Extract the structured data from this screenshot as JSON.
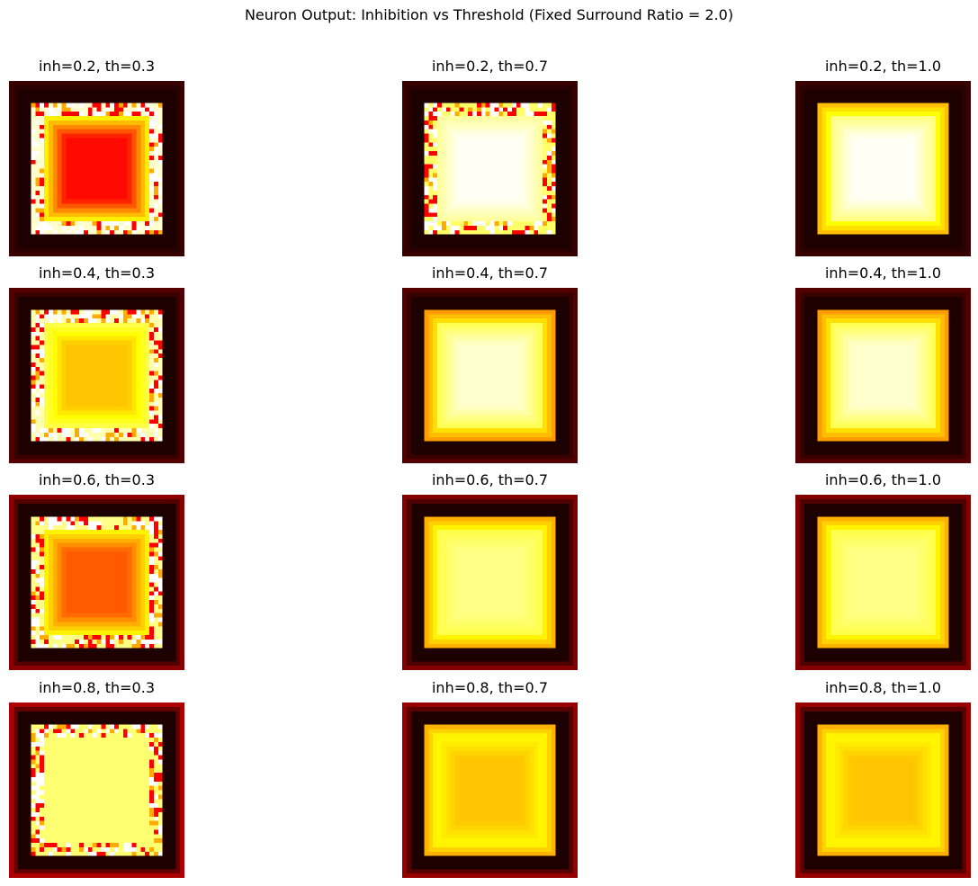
{
  "chart_data": {
    "type": "heatmap",
    "title": "Neuron Output: Inhibition vs Threshold (Fixed Surround Ratio = 2.0)",
    "colormap": "hot",
    "grid": false,
    "axes_visible": false,
    "rows": [
      "inh=0.2",
      "inh=0.4",
      "inh=0.6",
      "inh=0.8"
    ],
    "columns": [
      "th=0.3",
      "th=0.7",
      "th=1.0"
    ],
    "panels": [
      {
        "title": "inh=0.2, th=0.3",
        "inh": 0.2,
        "th": 0.3,
        "background": 0.05,
        "ring": 0.0,
        "edge": 0.95,
        "center": 0.38,
        "pattern": "noisy-edge"
      },
      {
        "title": "inh=0.2, th=0.7",
        "inh": 0.2,
        "th": 0.7,
        "background": 0.05,
        "ring": 0.0,
        "edge": 0.85,
        "center": 0.99,
        "pattern": "noisy-edge"
      },
      {
        "title": "inh=0.2, th=1.0",
        "inh": 0.2,
        "th": 1.0,
        "background": 0.05,
        "ring": 0.0,
        "edge": 0.8,
        "center": 0.99,
        "pattern": "smooth"
      },
      {
        "title": "inh=0.4, th=0.3",
        "inh": 0.4,
        "th": 0.3,
        "background": 0.1,
        "ring": 0.0,
        "edge": 0.92,
        "center": 0.66,
        "pattern": "noisy-edge"
      },
      {
        "title": "inh=0.4, th=0.7",
        "inh": 0.4,
        "th": 0.7,
        "background": 0.1,
        "ring": 0.0,
        "edge": 0.75,
        "center": 0.95,
        "pattern": "smooth"
      },
      {
        "title": "inh=0.4, th=1.0",
        "inh": 0.4,
        "th": 1.0,
        "background": 0.1,
        "ring": 0.0,
        "edge": 0.75,
        "center": 0.95,
        "pattern": "smooth"
      },
      {
        "title": "inh=0.6, th=0.3",
        "inh": 0.6,
        "th": 0.3,
        "background": 0.2,
        "ring": 0.0,
        "edge": 0.88,
        "center": 0.5,
        "pattern": "noisy-edge"
      },
      {
        "title": "inh=0.6, th=0.7",
        "inh": 0.6,
        "th": 0.7,
        "background": 0.18,
        "ring": 0.0,
        "edge": 0.78,
        "center": 0.88,
        "pattern": "smooth"
      },
      {
        "title": "inh=0.6, th=1.0",
        "inh": 0.6,
        "th": 1.0,
        "background": 0.18,
        "ring": 0.0,
        "edge": 0.78,
        "center": 0.88,
        "pattern": "smooth"
      },
      {
        "title": "inh=0.8, th=0.3",
        "inh": 0.8,
        "th": 0.3,
        "background": 0.26,
        "ring": 0.0,
        "edge": 0.86,
        "center": 0.86,
        "pattern": "noisy-edge"
      },
      {
        "title": "inh=0.8, th=0.7",
        "inh": 0.8,
        "th": 0.7,
        "background": 0.22,
        "ring": 0.0,
        "edge": 0.78,
        "center": 0.66,
        "pattern": "smooth"
      },
      {
        "title": "inh=0.8, th=1.0",
        "inh": 0.8,
        "th": 1.0,
        "background": 0.22,
        "ring": 0.0,
        "edge": 0.78,
        "center": 0.66,
        "pattern": "smooth"
      }
    ]
  }
}
